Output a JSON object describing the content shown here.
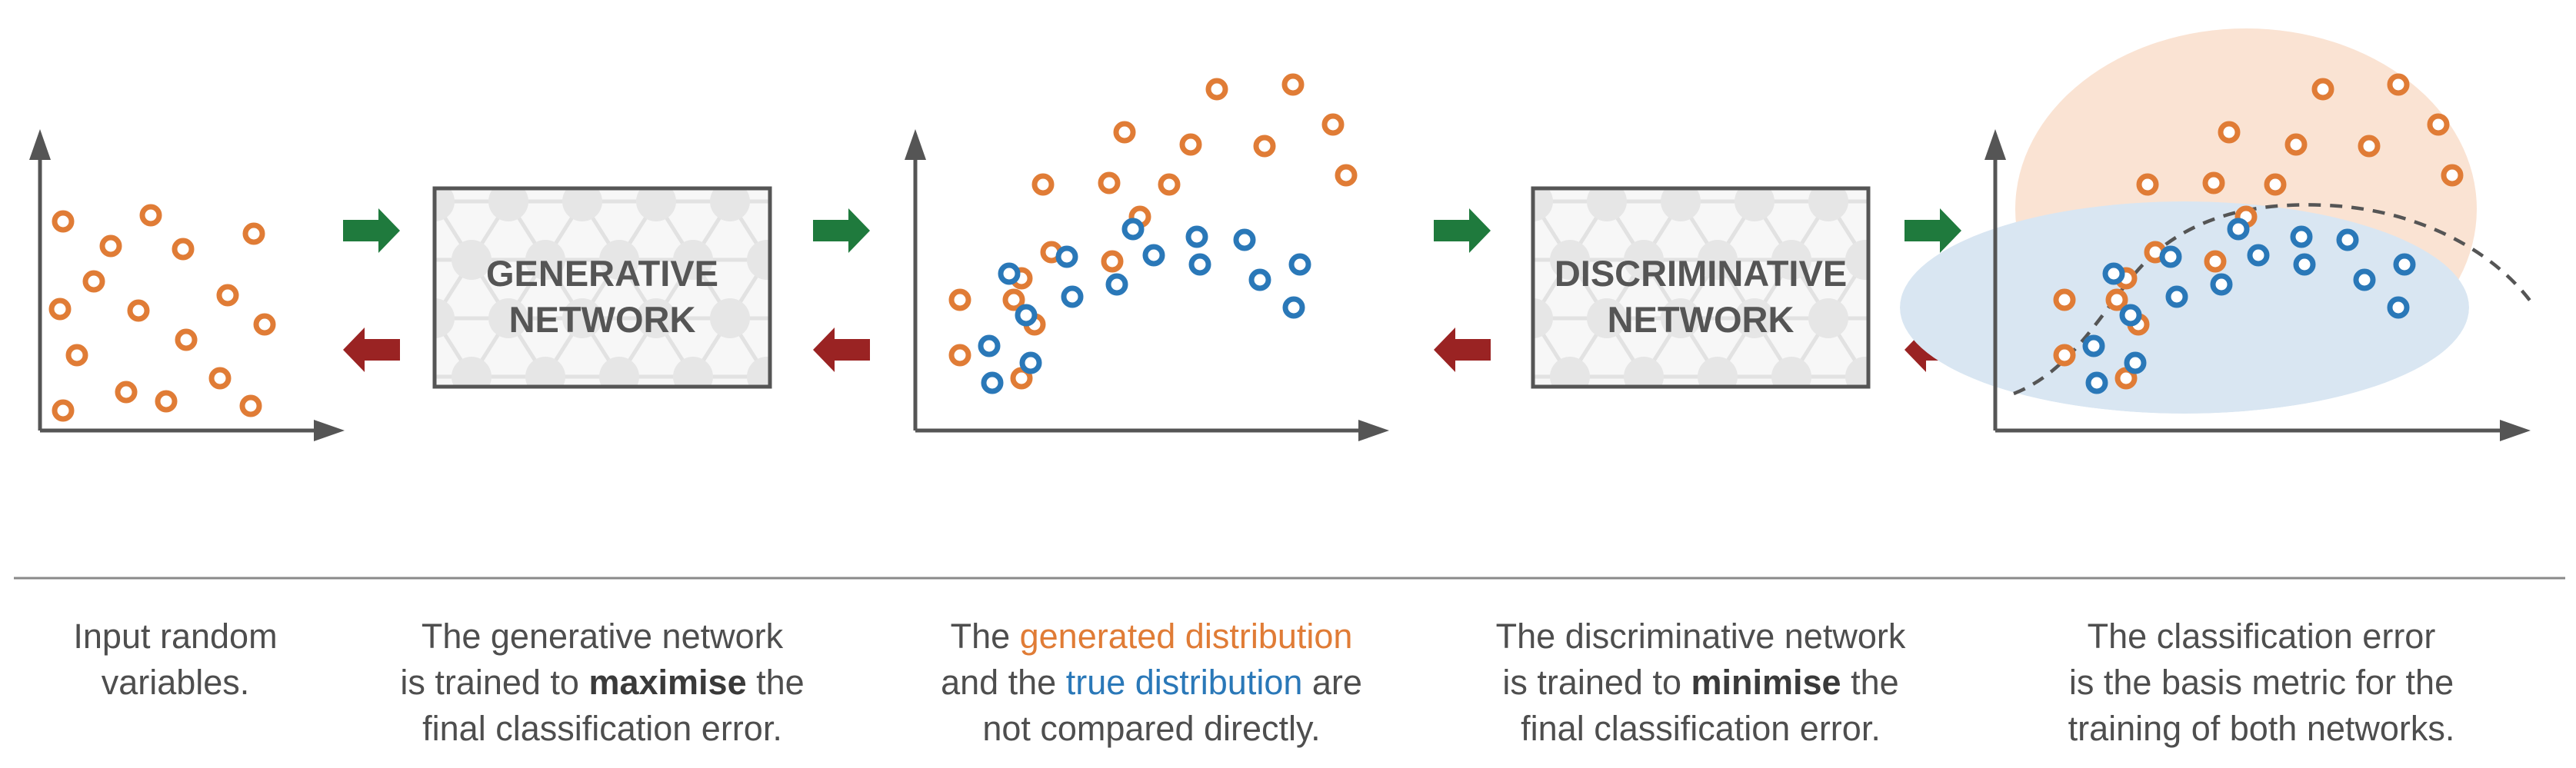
{
  "colors": {
    "orange": "#e07c36",
    "blue": "#2a78b8",
    "green_arrow": "#1f7a3d",
    "red_arrow": "#9a2323",
    "axis": "#555555",
    "box_border": "#555555",
    "box_text": "#555555",
    "region_orange": "#fae3d3",
    "region_blue": "#d9e6f2"
  },
  "icons": {
    "forward_arrow": "arrow-right-icon",
    "backward_arrow": "arrow-left-icon"
  },
  "networks": {
    "generative": {
      "line1": "GENERATIVE",
      "line2": "NETWORK"
    },
    "discriminative": {
      "line1": "DISCRIMINATIVE",
      "line2": "NETWORK"
    }
  },
  "captions": {
    "input": {
      "line1": "Input random",
      "line2": "variables."
    },
    "generative": {
      "line1": "The generative network",
      "line2_pre": "is trained to ",
      "line2_bold": "maximise",
      "line2_post": " the",
      "line3": "final classification error."
    },
    "distributions": {
      "line1_pre": "The ",
      "line1_orange": "generated distribution",
      "line2_pre": "and the ",
      "line2_blue": "true distribution",
      "line2_post": " are",
      "line3": "not compared directly."
    },
    "discriminative": {
      "line1": "The discriminative network",
      "line2_pre": "is trained to ",
      "line2_bold": "minimise",
      "line2_post": " the",
      "line3": "final classification error."
    },
    "classification": {
      "line1": "The classification error",
      "line2": "is the basis metric for the",
      "line3": "training of both networks."
    }
  }
}
